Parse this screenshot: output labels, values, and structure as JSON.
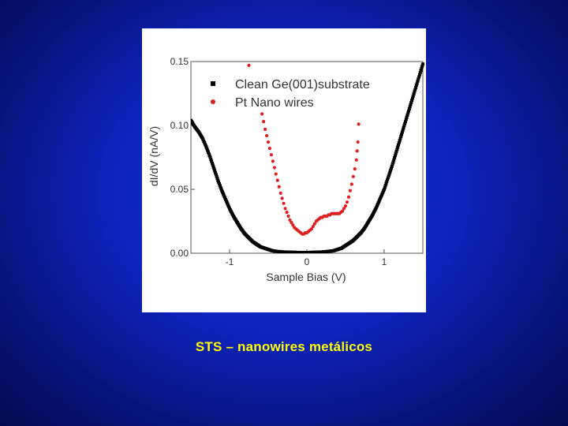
{
  "slide": {
    "caption": "STS – nanowires metálicos",
    "caption_color": "#ffff00",
    "background_color": "#0d22b8"
  },
  "chart_data": {
    "type": "scatter",
    "title": "",
    "xlabel": "Sample Bias (V)",
    "ylabel": "dI/dV (nA/V)",
    "xlim": [
      -1.5,
      1.5
    ],
    "ylim": [
      0.0,
      0.15
    ],
    "x_ticks": [
      -1,
      0,
      1
    ],
    "x_tick_labels": [
      "-1",
      "0",
      "1"
    ],
    "y_ticks": [
      0.0,
      0.05,
      0.1,
      0.15
    ],
    "y_tick_labels": [
      "0.00",
      "0.05",
      "0.10",
      "0.15"
    ],
    "grid": false,
    "legend_position": "top-right",
    "series": [
      {
        "name": "Clean Ge(001)substrate",
        "color": "#000000",
        "marker": "square",
        "points": [
          [
            -1.5,
            0.104
          ],
          [
            -1.45,
            0.099
          ],
          [
            -1.4,
            0.095
          ],
          [
            -1.35,
            0.09
          ],
          [
            -1.3,
            0.083
          ],
          [
            -1.25,
            0.075
          ],
          [
            -1.2,
            0.066
          ],
          [
            -1.15,
            0.057
          ],
          [
            -1.1,
            0.049
          ],
          [
            -1.05,
            0.042
          ],
          [
            -1.0,
            0.035
          ],
          [
            -0.95,
            0.029
          ],
          [
            -0.9,
            0.024
          ],
          [
            -0.85,
            0.019
          ],
          [
            -0.8,
            0.015
          ],
          [
            -0.75,
            0.012
          ],
          [
            -0.7,
            0.009
          ],
          [
            -0.65,
            0.007
          ],
          [
            -0.6,
            0.005
          ],
          [
            -0.55,
            0.004
          ],
          [
            -0.5,
            0.003
          ],
          [
            -0.45,
            0.002
          ],
          [
            -0.4,
            0.0015
          ],
          [
            -0.3,
            0.001
          ],
          [
            -0.2,
            0.0008
          ],
          [
            -0.1,
            0.0006
          ],
          [
            0.0,
            0.0006
          ],
          [
            0.1,
            0.0008
          ],
          [
            0.2,
            0.001
          ],
          [
            0.3,
            0.0016
          ],
          [
            0.35,
            0.002
          ],
          [
            0.4,
            0.003
          ],
          [
            0.45,
            0.004
          ],
          [
            0.5,
            0.006
          ],
          [
            0.55,
            0.008
          ],
          [
            0.6,
            0.01
          ],
          [
            0.65,
            0.013
          ],
          [
            0.7,
            0.016
          ],
          [
            0.75,
            0.02
          ],
          [
            0.8,
            0.025
          ],
          [
            0.85,
            0.03
          ],
          [
            0.9,
            0.036
          ],
          [
            0.95,
            0.043
          ],
          [
            1.0,
            0.05
          ],
          [
            1.05,
            0.059
          ],
          [
            1.1,
            0.068
          ],
          [
            1.15,
            0.078
          ],
          [
            1.2,
            0.088
          ],
          [
            1.25,
            0.098
          ],
          [
            1.3,
            0.108
          ],
          [
            1.35,
            0.118
          ],
          [
            1.4,
            0.128
          ],
          [
            1.45,
            0.138
          ],
          [
            1.5,
            0.148
          ]
        ]
      },
      {
        "name": "Pt Nano wires",
        "color": "#e02020",
        "marker": "circle",
        "points": [
          [
            -0.75,
            0.147
          ],
          [
            -0.58,
            0.109
          ],
          [
            -0.56,
            0.103
          ],
          [
            -0.54,
            0.097
          ],
          [
            -0.52,
            0.092
          ],
          [
            -0.5,
            0.087
          ],
          [
            -0.48,
            0.082
          ],
          [
            -0.46,
            0.077
          ],
          [
            -0.44,
            0.072
          ],
          [
            -0.42,
            0.067
          ],
          [
            -0.4,
            0.062
          ],
          [
            -0.38,
            0.057
          ],
          [
            -0.36,
            0.052
          ],
          [
            -0.34,
            0.047
          ],
          [
            -0.32,
            0.043
          ],
          [
            -0.3,
            0.039
          ],
          [
            -0.28,
            0.035
          ],
          [
            -0.26,
            0.032
          ],
          [
            -0.24,
            0.029
          ],
          [
            -0.22,
            0.026
          ],
          [
            -0.2,
            0.024
          ],
          [
            -0.18,
            0.022
          ],
          [
            -0.16,
            0.02
          ],
          [
            -0.14,
            0.019
          ],
          [
            -0.12,
            0.018
          ],
          [
            -0.1,
            0.017
          ],
          [
            -0.08,
            0.016
          ],
          [
            -0.06,
            0.015
          ],
          [
            -0.04,
            0.015
          ],
          [
            -0.02,
            0.016
          ],
          [
            0.0,
            0.016
          ],
          [
            0.02,
            0.017
          ],
          [
            0.04,
            0.018
          ],
          [
            0.06,
            0.019
          ],
          [
            0.08,
            0.021
          ],
          [
            0.1,
            0.023
          ],
          [
            0.12,
            0.025
          ],
          [
            0.14,
            0.026
          ],
          [
            0.16,
            0.027
          ],
          [
            0.18,
            0.028
          ],
          [
            0.2,
            0.028
          ],
          [
            0.22,
            0.029
          ],
          [
            0.24,
            0.029
          ],
          [
            0.26,
            0.029
          ],
          [
            0.28,
            0.03
          ],
          [
            0.3,
            0.03
          ],
          [
            0.32,
            0.031
          ],
          [
            0.34,
            0.031
          ],
          [
            0.36,
            0.031
          ],
          [
            0.38,
            0.031
          ],
          [
            0.4,
            0.031
          ],
          [
            0.42,
            0.031
          ],
          [
            0.44,
            0.032
          ],
          [
            0.46,
            0.033
          ],
          [
            0.48,
            0.035
          ],
          [
            0.5,
            0.037
          ],
          [
            0.52,
            0.04
          ],
          [
            0.54,
            0.044
          ],
          [
            0.56,
            0.049
          ],
          [
            0.58,
            0.054
          ],
          [
            0.6,
            0.06
          ],
          [
            0.62,
            0.066
          ],
          [
            0.64,
            0.073
          ],
          [
            0.65,
            0.08
          ],
          [
            0.66,
            0.087
          ],
          [
            0.67,
            0.101
          ]
        ]
      }
    ]
  }
}
